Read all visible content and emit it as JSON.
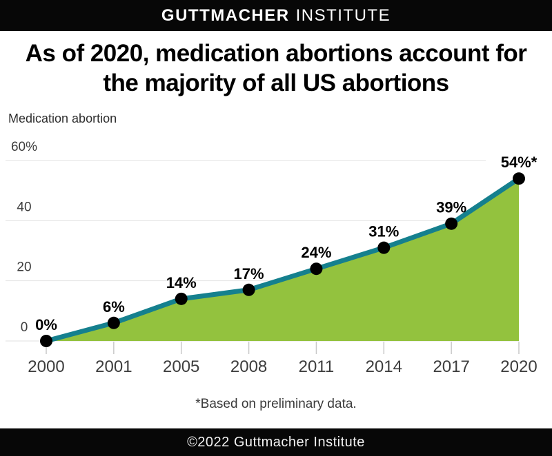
{
  "header": {
    "brand_bold": "GUTTMACHER",
    "brand_light": "INSTITUTE"
  },
  "chart_data": {
    "type": "area",
    "title": "As of 2020, medication abortions account for the majority of all US abortions",
    "series_label": "Medication abortion",
    "x": [
      "2000",
      "2001",
      "2005",
      "2008",
      "2011",
      "2014",
      "2017",
      "2020"
    ],
    "values": [
      0,
      6,
      14,
      17,
      24,
      31,
      39,
      54
    ],
    "point_labels": [
      "0%",
      "6%",
      "14%",
      "17%",
      "24%",
      "31%",
      "39%",
      "54%*"
    ],
    "ylim": [
      0,
      60
    ],
    "y_ticks": [
      {
        "value": 60,
        "label": "60%"
      },
      {
        "value": 40,
        "label": "40"
      },
      {
        "value": 20,
        "label": "20"
      },
      {
        "value": 0,
        "label": "0"
      }
    ],
    "grid": true,
    "legend_position": "none",
    "colors": {
      "area": "#93c23e",
      "line": "#15808e",
      "dot": "#000000",
      "grid": "#e2e2e2",
      "tick_mark": "#c9c9c9"
    }
  },
  "footnote": {
    "text": "*Based on preliminary data."
  },
  "footer": {
    "credit": "©2022 Guttmacher Institute"
  }
}
